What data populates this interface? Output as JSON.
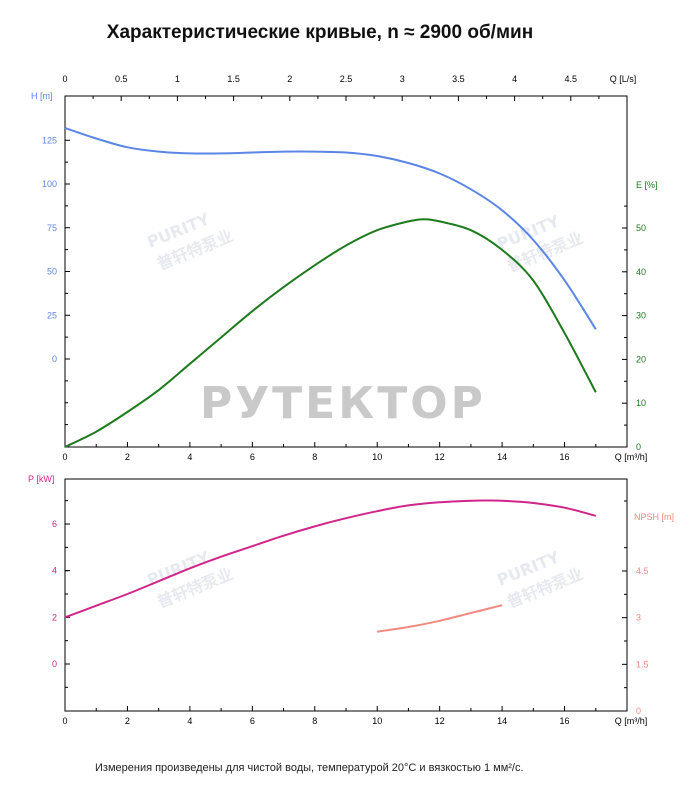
{
  "title": "Характеристические кривые, n ≈ 2900 об/мин",
  "footnote": "Измерения произведены для чистой воды, температурой 20°C и вязкостью 1 мм²/с.",
  "watermarks": {
    "main": "РУТЕКТОР",
    "brand": "PURITY",
    "brand_cn": "普轩特泵业"
  },
  "colors": {
    "head": "#5b86e5",
    "efficiency": "#1e7a1e",
    "power": "#d0268a",
    "npsh": "#f08a80",
    "axis": "#000000"
  },
  "chart_data": [
    {
      "type": "line",
      "xlabel": "Q [m³/h]",
      "x2label": "Q [L/s]",
      "xlim": [
        0,
        18
      ],
      "x2lim": [
        0,
        5
      ],
      "xticks": [
        "0",
        "2",
        "4",
        "6",
        "8",
        "10",
        "12",
        "14",
        "16"
      ],
      "x2ticks": [
        "0",
        "0.5",
        "1",
        "1.5",
        "2",
        "2.5",
        "3",
        "3.5",
        "4",
        "4.5"
      ],
      "ylabel": "H [m]",
      "yticks": [
        "0",
        "25",
        "50",
        "75",
        "100",
        "125"
      ],
      "y2label": "E [%]",
      "y2lim": [
        0,
        60
      ],
      "y2ticks": [
        "0",
        "10",
        "20",
        "30",
        "40",
        "50"
      ],
      "grid": false,
      "series": [
        {
          "name": "H [m]",
          "axis": "left",
          "x": [
            0,
            1,
            2,
            3,
            4,
            5,
            6,
            7,
            8,
            9,
            10,
            11,
            12,
            13,
            14,
            15,
            16,
            17
          ],
          "values": [
            132,
            126,
            121,
            118.5,
            117.5,
            117.5,
            118,
            118.5,
            118.5,
            118,
            116,
            112,
            106,
            97,
            85,
            68,
            45,
            17
          ]
        },
        {
          "name": "E [%]",
          "axis": "right",
          "x": [
            0,
            1,
            2,
            3,
            4,
            5,
            6,
            7,
            8,
            9,
            10,
            11,
            11.5,
            12,
            13,
            14,
            15,
            16,
            17
          ],
          "values": [
            0,
            3.5,
            8,
            13,
            19,
            25,
            31,
            36.5,
            41.5,
            46,
            49.5,
            51.5,
            52,
            51.5,
            49.5,
            45,
            38,
            26,
            12.5
          ]
        }
      ]
    },
    {
      "type": "line",
      "xlabel": "Q [m³/h]",
      "xlim": [
        0,
        18
      ],
      "xticks": [
        "0",
        "2",
        "4",
        "6",
        "8",
        "10",
        "12",
        "14",
        "16"
      ],
      "ylabel": "P [kW]",
      "yticks": [
        "0",
        "2",
        "4",
        "6"
      ],
      "y2label": "NPSH [m]",
      "y2lim": [
        0,
        7
      ],
      "y2ticks": [
        "0",
        "1.5",
        "3",
        "4.5"
      ],
      "grid": false,
      "series": [
        {
          "name": "P [kW]",
          "axis": "left",
          "x": [
            0,
            1,
            2,
            3,
            4,
            5,
            6,
            7,
            8,
            9,
            10,
            11,
            12,
            13,
            13.5,
            14,
            15,
            16,
            17
          ],
          "values": [
            2.0,
            2.5,
            3.0,
            3.55,
            4.1,
            4.6,
            5.05,
            5.5,
            5.9,
            6.25,
            6.55,
            6.8,
            6.93,
            7.0,
            7.01,
            7.0,
            6.9,
            6.7,
            6.35
          ]
        },
        {
          "name": "NPSH [m]",
          "axis": "right",
          "x": [
            10,
            11,
            12,
            13,
            14
          ],
          "values": [
            2.55,
            2.7,
            2.9,
            3.15,
            3.4
          ]
        }
      ]
    }
  ]
}
